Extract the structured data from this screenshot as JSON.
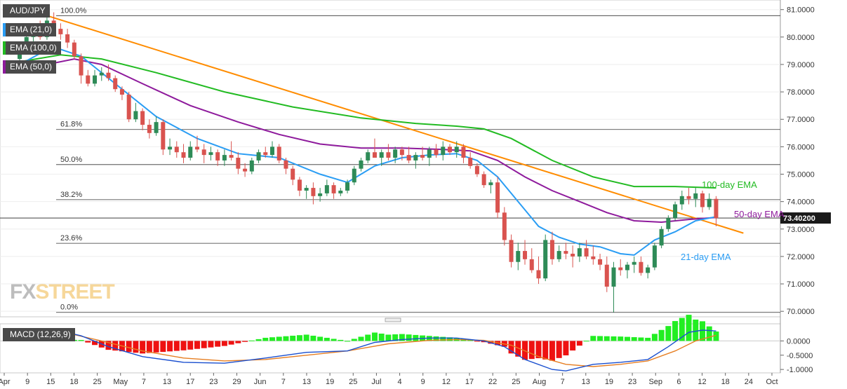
{
  "legend": {
    "symbol": "AUD/JPY",
    "ema21": "EMA (21,0)",
    "ema100": "EMA (100,0)",
    "ema50": "EMA (50,0)",
    "macd": "MACD (12,26,9)"
  },
  "watermark": {
    "part1": "FX",
    "part2": "STREET"
  },
  "colors": {
    "up": "#2e8b57",
    "down": "#d9534f",
    "ema21": "#2a9df4",
    "ema50": "#8e1a9c",
    "ema100": "#22bb22",
    "trendline": "#ff8c00",
    "macd_line": "#1a4fcf",
    "signal_line": "#e67e22",
    "hist_pos": "#22ee22",
    "hist_neg": "#ee1111"
  },
  "chart_data": {
    "type": "candlestick",
    "price_axis": {
      "min": 69.8,
      "max": 81.35,
      "ticks": [
        "81.0000",
        "80.0000",
        "79.0000",
        "78.0000",
        "77.0000",
        "76.0000",
        "75.0000",
        "74.0000",
        "73.0000",
        "72.0000",
        "71.0000",
        "70.0000"
      ]
    },
    "macd_axis": {
      "min": -1.12,
      "max": 0.6,
      "ticks": [
        "0.0000",
        "-0.5000",
        "-1.0000"
      ]
    },
    "current_price": "73.40200",
    "current_price_value": 73.402,
    "x_axis_labels": [
      "Apr",
      "9",
      "15",
      "18",
      "25",
      "May",
      "7",
      "13",
      "17",
      "23",
      "29",
      "Jun",
      "7",
      "13",
      "19",
      "25",
      "Jul",
      "4",
      "9",
      "12",
      "17",
      "22",
      "25",
      "Aug",
      "7",
      "13",
      "19",
      "23",
      "Sep",
      "6",
      "12",
      "18",
      "24",
      "Oct"
    ],
    "fibonacci": [
      {
        "label": "100.0%",
        "value": 80.78
      },
      {
        "label": "61.8%",
        "value": 76.63
      },
      {
        "label": "50.0%",
        "value": 75.35
      },
      {
        "label": "38.2%",
        "value": 74.07
      },
      {
        "label": "23.6%",
        "value": 72.48
      },
      {
        "label": "0.0%",
        "value": 69.96
      }
    ],
    "annotations": [
      "100-day EMA",
      "50-day EMA",
      "21-day EMA"
    ],
    "ohlc": [
      [
        79.2,
        79.7,
        79.0,
        79.6
      ],
      [
        79.6,
        80.2,
        79.5,
        80.0
      ],
      [
        80.0,
        80.5,
        79.8,
        80.2
      ],
      [
        80.2,
        80.6,
        79.9,
        80.0
      ],
      [
        80.0,
        80.8,
        79.9,
        80.6
      ],
      [
        80.6,
        80.9,
        80.2,
        80.3
      ],
      [
        80.3,
        80.5,
        79.9,
        80.1
      ],
      [
        80.1,
        80.3,
        79.6,
        79.8
      ],
      [
        79.8,
        79.9,
        79.2,
        79.3
      ],
      [
        79.3,
        79.4,
        78.3,
        78.6
      ],
      [
        78.6,
        78.8,
        78.2,
        78.3
      ],
      [
        78.3,
        78.8,
        78.2,
        78.6
      ],
      [
        78.6,
        78.9,
        78.4,
        78.7
      ],
      [
        78.7,
        79.0,
        78.4,
        78.5
      ],
      [
        78.5,
        78.6,
        78.0,
        78.1
      ],
      [
        78.1,
        78.2,
        77.7,
        77.9
      ],
      [
        77.9,
        78.0,
        76.9,
        77.0
      ],
      [
        77.0,
        77.6,
        76.9,
        77.3
      ],
      [
        77.3,
        77.4,
        76.6,
        76.8
      ],
      [
        76.8,
        77.0,
        76.3,
        76.5
      ],
      [
        76.5,
        77.1,
        76.4,
        76.9
      ],
      [
        76.9,
        77.0,
        75.7,
        75.9
      ],
      [
        75.9,
        76.3,
        75.7,
        76.0
      ],
      [
        76.0,
        76.2,
        75.6,
        75.8
      ],
      [
        75.8,
        76.1,
        75.4,
        75.6
      ],
      [
        75.6,
        76.2,
        75.5,
        76.0
      ],
      [
        76.0,
        76.4,
        75.8,
        75.9
      ],
      [
        75.9,
        76.1,
        75.4,
        75.7
      ],
      [
        75.7,
        76.0,
        75.5,
        75.8
      ],
      [
        75.8,
        75.9,
        75.3,
        75.5
      ],
      [
        75.5,
        75.9,
        75.3,
        75.7
      ],
      [
        75.7,
        76.2,
        75.5,
        75.6
      ],
      [
        75.6,
        75.8,
        75.0,
        75.2
      ],
      [
        75.2,
        75.4,
        74.9,
        75.1
      ],
      [
        75.1,
        75.6,
        75.0,
        75.5
      ],
      [
        75.5,
        75.9,
        75.4,
        75.8
      ],
      [
        75.8,
        76.0,
        75.6,
        75.7
      ],
      [
        75.7,
        76.2,
        75.6,
        76.0
      ],
      [
        76.0,
        76.1,
        75.4,
        75.5
      ],
      [
        75.5,
        75.6,
        75.0,
        75.2
      ],
      [
        75.2,
        75.3,
        74.6,
        74.8
      ],
      [
        74.8,
        74.9,
        74.2,
        74.4
      ],
      [
        74.4,
        74.6,
        74.1,
        74.5
      ],
      [
        74.5,
        74.7,
        73.9,
        74.2
      ],
      [
        74.2,
        74.5,
        74.0,
        74.3
      ],
      [
        74.3,
        74.8,
        74.2,
        74.6
      ],
      [
        74.6,
        74.7,
        74.1,
        74.3
      ],
      [
        74.3,
        74.5,
        74.2,
        74.4
      ],
      [
        74.4,
        74.8,
        74.3,
        74.7
      ],
      [
        74.7,
        75.3,
        74.6,
        75.2
      ],
      [
        75.2,
        75.6,
        75.1,
        75.5
      ],
      [
        75.5,
        75.9,
        75.4,
        75.8
      ],
      [
        75.8,
        76.3,
        75.6,
        75.6
      ],
      [
        75.6,
        75.9,
        75.3,
        75.8
      ],
      [
        75.8,
        76.1,
        75.5,
        75.6
      ],
      [
        75.6,
        76.0,
        75.4,
        75.9
      ],
      [
        75.9,
        76.0,
        75.5,
        75.7
      ],
      [
        75.7,
        76.0,
        75.4,
        75.5
      ],
      [
        75.5,
        75.8,
        75.2,
        75.7
      ],
      [
        75.7,
        76.0,
        75.5,
        75.6
      ],
      [
        75.6,
        76.0,
        75.3,
        75.9
      ],
      [
        75.9,
        76.1,
        75.6,
        75.7
      ],
      [
        75.7,
        76.2,
        75.5,
        76.0
      ],
      [
        76.0,
        76.1,
        75.7,
        75.8
      ],
      [
        75.8,
        76.2,
        75.6,
        76.0
      ],
      [
        76.0,
        76.1,
        75.4,
        75.6
      ],
      [
        75.6,
        75.8,
        75.2,
        75.3
      ],
      [
        75.3,
        75.4,
        74.9,
        75.0
      ],
      [
        75.0,
        75.1,
        74.5,
        74.6
      ],
      [
        74.6,
        74.8,
        74.3,
        74.7
      ],
      [
        74.7,
        74.9,
        73.4,
        73.6
      ],
      [
        73.6,
        73.8,
        72.4,
        72.6
      ],
      [
        72.6,
        72.8,
        71.6,
        71.8
      ],
      [
        71.8,
        72.5,
        71.5,
        72.2
      ],
      [
        72.2,
        72.6,
        71.7,
        71.9
      ],
      [
        71.9,
        72.3,
        71.4,
        71.5
      ],
      [
        71.5,
        72.0,
        71.0,
        71.2
      ],
      [
        71.2,
        72.8,
        71.1,
        72.6
      ],
      [
        72.6,
        72.9,
        71.7,
        71.9
      ],
      [
        71.9,
        72.4,
        71.8,
        72.2
      ],
      [
        72.2,
        72.5,
        71.9,
        72.1
      ],
      [
        72.1,
        72.4,
        71.6,
        72.0
      ],
      [
        72.0,
        72.5,
        71.8,
        72.3
      ],
      [
        72.3,
        72.6,
        71.9,
        72.0
      ],
      [
        72.0,
        72.4,
        71.7,
        71.9
      ],
      [
        71.9,
        72.1,
        71.5,
        71.7
      ],
      [
        71.7,
        72.0,
        70.7,
        70.9
      ],
      [
        70.9,
        71.8,
        69.96,
        71.6
      ],
      [
        71.6,
        71.9,
        71.3,
        71.5
      ],
      [
        71.5,
        71.8,
        71.2,
        71.7
      ],
      [
        71.7,
        72.0,
        71.4,
        71.8
      ],
      [
        71.8,
        72.0,
        71.3,
        71.4
      ],
      [
        71.4,
        71.7,
        71.2,
        71.6
      ],
      [
        71.6,
        72.5,
        71.5,
        72.4
      ],
      [
        72.4,
        73.1,
        72.3,
        73.0
      ],
      [
        73.0,
        73.5,
        72.9,
        73.4
      ],
      [
        73.4,
        74.0,
        73.3,
        73.9
      ],
      [
        73.9,
        74.4,
        73.7,
        74.2
      ],
      [
        74.2,
        74.5,
        73.9,
        74.1
      ],
      [
        74.1,
        74.5,
        73.8,
        74.3
      ],
      [
        74.3,
        74.4,
        73.6,
        73.8
      ],
      [
        73.8,
        74.3,
        73.7,
        74.1
      ],
      [
        74.1,
        74.2,
        73.1,
        73.4
      ]
    ],
    "ema21": [
      [
        0,
        79.0
      ],
      [
        3,
        79.4
      ],
      [
        6,
        79.55
      ],
      [
        9,
        79.3
      ],
      [
        14,
        78.3
      ],
      [
        20,
        77.1
      ],
      [
        26,
        76.3
      ],
      [
        32,
        75.75
      ],
      [
        38,
        75.6
      ],
      [
        44,
        75.0
      ],
      [
        48,
        74.7
      ],
      [
        52,
        75.3
      ],
      [
        56,
        75.6
      ],
      [
        60,
        75.7
      ],
      [
        64,
        75.75
      ],
      [
        67,
        75.5
      ],
      [
        70,
        74.9
      ],
      [
        73,
        74.0
      ],
      [
        76,
        73.1
      ],
      [
        79,
        72.7
      ],
      [
        82,
        72.45
      ],
      [
        85,
        72.35
      ],
      [
        88,
        72.1
      ],
      [
        90,
        72.05
      ],
      [
        93,
        72.6
      ],
      [
        96,
        72.9
      ],
      [
        99,
        73.3
      ],
      [
        102,
        73.45
      ]
    ],
    "ema50": [
      [
        0,
        78.8
      ],
      [
        4,
        79.0
      ],
      [
        8,
        79.2
      ],
      [
        12,
        79.0
      ],
      [
        18,
        78.3
      ],
      [
        25,
        77.5
      ],
      [
        32,
        76.9
      ],
      [
        38,
        76.45
      ],
      [
        44,
        76.1
      ],
      [
        50,
        75.95
      ],
      [
        56,
        75.95
      ],
      [
        62,
        75.9
      ],
      [
        66,
        75.85
      ],
      [
        70,
        75.5
      ],
      [
        74,
        74.9
      ],
      [
        78,
        74.4
      ],
      [
        82,
        74.0
      ],
      [
        86,
        73.6
      ],
      [
        90,
        73.3
      ],
      [
        94,
        73.25
      ],
      [
        98,
        73.35
      ],
      [
        102,
        73.42
      ]
    ],
    "ema100": [
      [
        0,
        79.1
      ],
      [
        6,
        79.35
      ],
      [
        12,
        79.2
      ],
      [
        20,
        78.7
      ],
      [
        30,
        78.0
      ],
      [
        40,
        77.45
      ],
      [
        50,
        77.05
      ],
      [
        58,
        76.85
      ],
      [
        64,
        76.75
      ],
      [
        68,
        76.65
      ],
      [
        72,
        76.3
      ],
      [
        78,
        75.5
      ],
      [
        84,
        74.9
      ],
      [
        90,
        74.55
      ],
      [
        96,
        74.55
      ],
      [
        102,
        74.5
      ]
    ],
    "trendline": [
      [
        4,
        80.78
      ],
      [
        106,
        72.85
      ]
    ],
    "macd": [
      [
        0,
        0.15
      ],
      [
        3,
        0.32
      ],
      [
        6,
        0.35
      ],
      [
        9,
        0.18
      ],
      [
        13,
        -0.2
      ],
      [
        18,
        -0.55
      ],
      [
        24,
        -0.75
      ],
      [
        30,
        -0.78
      ],
      [
        36,
        -0.6
      ],
      [
        42,
        -0.4
      ],
      [
        48,
        -0.35
      ],
      [
        52,
        -0.05
      ],
      [
        56,
        0.05
      ],
      [
        60,
        0.1
      ],
      [
        64,
        0.1
      ],
      [
        68,
        0.0
      ],
      [
        71,
        -0.2
      ],
      [
        74,
        -0.65
      ],
      [
        78,
        -1.0
      ],
      [
        80,
        -1.05
      ],
      [
        84,
        -0.82
      ],
      [
        88,
        -0.75
      ],
      [
        92,
        -0.65
      ],
      [
        95,
        -0.2
      ],
      [
        98,
        0.3
      ],
      [
        100,
        0.38
      ],
      [
        102,
        0.35
      ]
    ],
    "signal": [
      [
        0,
        0.05
      ],
      [
        4,
        0.2
      ],
      [
        8,
        0.22
      ],
      [
        12,
        0.0
      ],
      [
        18,
        -0.35
      ],
      [
        24,
        -0.6
      ],
      [
        30,
        -0.7
      ],
      [
        36,
        -0.65
      ],
      [
        42,
        -0.5
      ],
      [
        48,
        -0.35
      ],
      [
        54,
        -0.1
      ],
      [
        60,
        0.02
      ],
      [
        64,
        0.05
      ],
      [
        68,
        0.02
      ],
      [
        72,
        -0.15
      ],
      [
        76,
        -0.55
      ],
      [
        80,
        -0.82
      ],
      [
        84,
        -0.9
      ],
      [
        88,
        -0.82
      ],
      [
        92,
        -0.7
      ],
      [
        96,
        -0.35
      ],
      [
        99,
        0.0
      ],
      [
        102,
        0.2
      ]
    ],
    "histogram_note": "MACD minus signal per session"
  }
}
